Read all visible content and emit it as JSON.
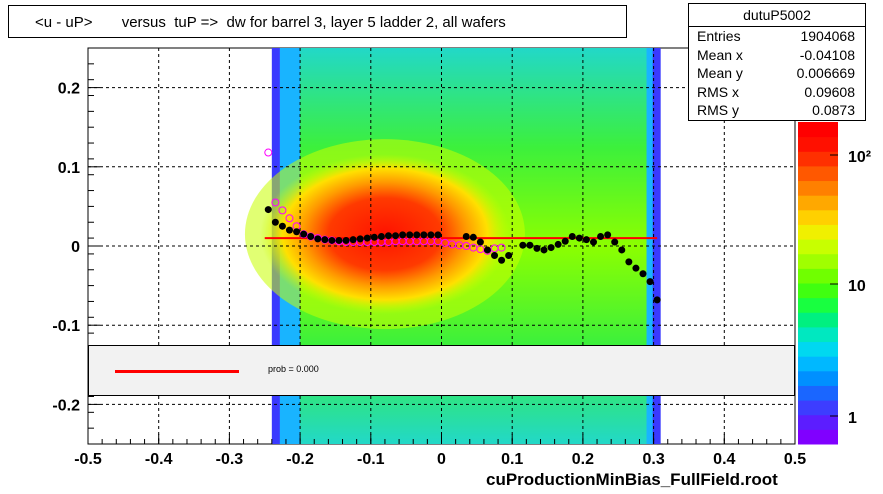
{
  "title": "<u - uP>       versus  tuP =>  dw for barrel 3, layer 5 ladder 2, all wafers",
  "footer": "cuProductionMinBias_FullField.root",
  "stats": {
    "name": "dutuP5002",
    "rows": [
      {
        "label": "Entries",
        "value": "1904068"
      },
      {
        "label": "Mean x",
        "value": "-0.04108"
      },
      {
        "label": "Mean y",
        "value": "0.006669"
      },
      {
        "label": "RMS x",
        "value": "0.09608"
      },
      {
        "label": "RMS y",
        "value": "0.0873"
      }
    ]
  },
  "fit_legend": {
    "prob_text": "prob = 0.000",
    "line_color": "#ff0000"
  },
  "colorbar": {
    "labels": [
      "10²",
      "10",
      "1"
    ]
  },
  "chart_data": {
    "type": "heatmap",
    "xlim": [
      -0.5,
      0.5
    ],
    "ylim": [
      -0.25,
      0.25
    ],
    "xticks": [
      "-0.5",
      "-0.4",
      "-0.3",
      "-0.2",
      "-0.1",
      "0",
      "0.1",
      "0.2",
      "0.3",
      "0.4",
      "0.5"
    ],
    "yticks": [
      "0.2",
      "0.1",
      "0",
      "-0.1",
      "-0.2"
    ],
    "grid": true,
    "z_scale": "log",
    "fit_line": {
      "y": 0.01,
      "x_range": [
        -0.25,
        0.305
      ],
      "color": "#ff0000"
    },
    "profile_black": [
      [
        -0.245,
        0.046
      ],
      [
        -0.235,
        0.03
      ],
      [
        -0.225,
        0.025
      ],
      [
        -0.215,
        0.02
      ],
      [
        -0.205,
        0.018
      ],
      [
        -0.195,
        0.015
      ],
      [
        -0.185,
        0.012
      ],
      [
        -0.175,
        0.009
      ],
      [
        -0.165,
        0.008
      ],
      [
        -0.155,
        0.007
      ],
      [
        -0.145,
        0.007
      ],
      [
        -0.135,
        0.007
      ],
      [
        -0.125,
        0.008
      ],
      [
        -0.115,
        0.009
      ],
      [
        -0.105,
        0.01
      ],
      [
        -0.095,
        0.011
      ],
      [
        -0.085,
        0.012
      ],
      [
        -0.075,
        0.013
      ],
      [
        -0.065,
        0.013
      ],
      [
        -0.055,
        0.014
      ],
      [
        -0.045,
        0.014
      ],
      [
        -0.035,
        0.014
      ],
      [
        -0.025,
        0.014
      ],
      [
        -0.015,
        0.014
      ],
      [
        -0.005,
        0.014
      ],
      [
        0.035,
        0.012
      ],
      [
        0.045,
        0.011
      ],
      [
        0.055,
        0.005
      ],
      [
        0.065,
        -0.005
      ],
      [
        0.075,
        -0.012
      ],
      [
        0.085,
        -0.018
      ],
      [
        0.095,
        -0.012
      ],
      [
        0.115,
        0.001
      ],
      [
        0.125,
        0.001
      ],
      [
        0.135,
        -0.003
      ],
      [
        0.145,
        -0.005
      ],
      [
        0.155,
        -0.002
      ],
      [
        0.165,
        0.002
      ],
      [
        0.175,
        0.006
      ],
      [
        0.185,
        0.012
      ],
      [
        0.195,
        0.01
      ],
      [
        0.205,
        0.008
      ],
      [
        0.215,
        0.005
      ],
      [
        0.225,
        0.012
      ],
      [
        0.235,
        0.014
      ],
      [
        0.245,
        0.005
      ],
      [
        0.255,
        -0.005
      ],
      [
        0.265,
        -0.02
      ],
      [
        0.275,
        -0.028
      ],
      [
        0.285,
        -0.035
      ],
      [
        0.295,
        -0.045
      ],
      [
        0.305,
        -0.068
      ]
    ],
    "profile_magenta": [
      [
        -0.245,
        0.118
      ],
      [
        -0.235,
        0.055
      ],
      [
        -0.225,
        0.045
      ],
      [
        -0.215,
        0.035
      ],
      [
        -0.205,
        0.025
      ],
      [
        -0.195,
        0.015
      ],
      [
        -0.185,
        0.012
      ],
      [
        -0.175,
        0.01
      ],
      [
        -0.165,
        0.008
      ],
      [
        -0.155,
        0.007
      ],
      [
        -0.145,
        0.006
      ],
      [
        -0.135,
        0.005
      ],
      [
        -0.125,
        0.005
      ],
      [
        -0.115,
        0.005
      ],
      [
        -0.105,
        0.005
      ],
      [
        -0.095,
        0.005
      ],
      [
        -0.085,
        0.005
      ],
      [
        -0.075,
        0.005
      ],
      [
        -0.065,
        0.006
      ],
      [
        -0.055,
        0.006
      ],
      [
        -0.045,
        0.006
      ],
      [
        -0.035,
        0.006
      ],
      [
        -0.025,
        0.006
      ],
      [
        -0.015,
        0.006
      ],
      [
        -0.005,
        0.006
      ],
      [
        0.005,
        0.004
      ],
      [
        0.015,
        0.002
      ],
      [
        0.025,
        0.001
      ],
      [
        0.035,
        0.0
      ],
      [
        0.045,
        -0.002
      ],
      [
        0.055,
        -0.004
      ],
      [
        0.065,
        -0.006
      ],
      [
        0.075,
        -0.003
      ],
      [
        0.085,
        -0.002
      ]
    ]
  }
}
